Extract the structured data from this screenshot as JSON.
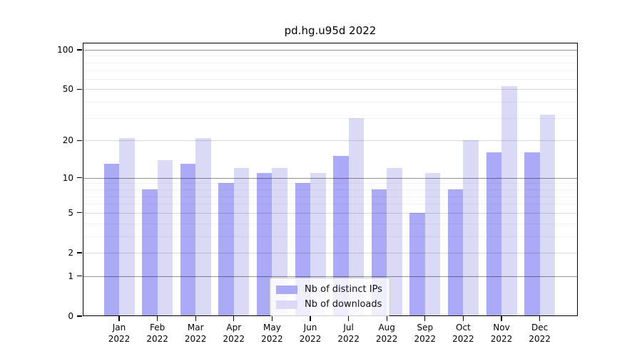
{
  "chart_data": {
    "type": "bar",
    "title": "pd.hg.u95d 2022",
    "categories": [
      "Jan",
      "Feb",
      "Mar",
      "Apr",
      "May",
      "Jun",
      "Jul",
      "Aug",
      "Sep",
      "Oct",
      "Nov",
      "Dec"
    ],
    "year": "2022",
    "series": [
      {
        "name": "Nb of distinct IPs",
        "color": "#aaaaf6",
        "values": [
          13,
          8,
          13,
          9,
          11,
          9,
          15,
          8,
          5,
          8,
          16,
          16
        ]
      },
      {
        "name": "Nb of downloads",
        "color": "#dadaf7",
        "values": [
          21,
          14,
          21,
          12,
          12,
          11,
          30,
          12,
          11,
          20,
          53,
          32
        ]
      }
    ],
    "yticks": [
      0,
      1,
      2,
      5,
      10,
      20,
      50,
      100
    ],
    "ylim": [
      0,
      100
    ],
    "yscale": "log1p",
    "grid": true,
    "legend_position": "bottom-center",
    "xlabel": "",
    "ylabel": ""
  }
}
